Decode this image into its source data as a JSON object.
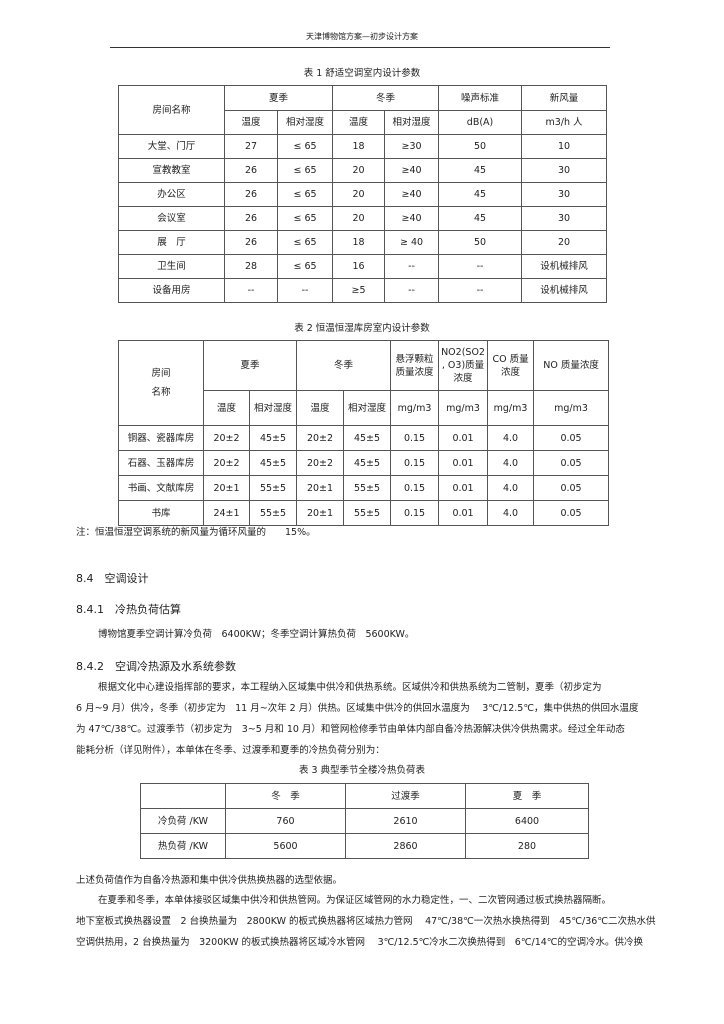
{
  "header": "天津博物馆方案—初步设计方案",
  "table1": {
    "caption": "表 1 舒适空调室内设计参数",
    "headers": {
      "room": "房间名称",
      "summer": "夏季",
      "winter": "冬季",
      "noise": "噪声标准",
      "fresh_air": "新风量",
      "temp": "温度",
      "rh": "相对湿度",
      "noise_unit": "dB(A)",
      "fresh_unit": "m3/h 人"
    },
    "rows": [
      [
        "大堂、门厅",
        "27",
        "≤ 65",
        "18",
        "≥30",
        "50",
        "10"
      ],
      [
        "宣教教室",
        "26",
        "≤ 65",
        "20",
        "≥40",
        "45",
        "30"
      ],
      [
        "办公区",
        "26",
        "≤ 65",
        "20",
        "≥40",
        "45",
        "30"
      ],
      [
        "会议室",
        "26",
        "≤ 65",
        "20",
        "≥40",
        "45",
        "30"
      ],
      [
        "展　厅",
        "26",
        "≤ 65",
        "18",
        "≥ 40",
        "50",
        "20"
      ],
      [
        "卫生间",
        "28",
        "≤ 65",
        "16",
        "--",
        "--",
        "设机械排风"
      ],
      [
        "设备用房",
        "--",
        "--",
        "≥5",
        "--",
        "--",
        "设机械排风"
      ]
    ]
  },
  "table2": {
    "caption": "表 2 恒温恒湿库房室内设计参数",
    "headers": {
      "room1": "房间",
      "room2": "名称",
      "summer": "夏季",
      "winter": "冬季",
      "pm": "悬浮颗粒质量浓度",
      "no2": "NO2(SO2 , O3)质量浓度",
      "co": "CO 质量浓度",
      "no": "NO 质量浓度",
      "temp": "温度",
      "rh": "相对湿度",
      "unit": "mg/m3"
    },
    "rows": [
      [
        "铜器、瓷器库房",
        "20±2",
        "45±5",
        "20±2",
        "45±5",
        "0.15",
        "0.01",
        "4.0",
        "0.05"
      ],
      [
        "石器、玉器库房",
        "20±2",
        "45±5",
        "20±2",
        "45±5",
        "0.15",
        "0.01",
        "4.0",
        "0.05"
      ],
      [
        "书画、文献库房",
        "20±1",
        "55±5",
        "20±1",
        "55±5",
        "0.15",
        "0.01",
        "4.0",
        "0.05"
      ],
      [
        "书库",
        "24±1",
        "55±5",
        "20±1",
        "55±5",
        "0.15",
        "0.01",
        "4.0",
        "0.05"
      ]
    ],
    "note": "注：恒温恒湿空调系统的新风量为循环风量的　　15%。"
  },
  "sections": {
    "s84": "8.4　空调设计",
    "s841": "8.4.1　冷热负荷估算",
    "p841": "博物馆夏季空调计算冷负荷　6400KW；冬季空调计算热负荷　5600KW。",
    "s842": "8.4.2　空调冷热源及水系统参数",
    "p842": [
      "根据文化中心建设指挥部的要求，本工程纳入区域集中供冷和供热系统。区域供冷和供热系统为二管制，夏季（初步定为",
      "6 月~9 月）供冷，冬季（初步定为　11 月~次年 2 月）供热。区域集中供冷的供回水温度为　 3℃/12.5℃，集中供热的供回水温度",
      "为 47℃/38℃。过渡季节（初步定为　3~5 月和 10 月）和管网检修季节由单体内部自备冷热源解决供冷供热需求。经过全年动态",
      "能耗分析（详见附件），本单体在冬季、过渡季和夏季的冷热负荷分别为："
    ]
  },
  "table3": {
    "caption": "表 3 典型季节全楼冷热负荷表",
    "headers": [
      "",
      "冬　季",
      "过渡季",
      "夏　季"
    ],
    "rows": [
      [
        "冷负荷 /KW",
        "760",
        "2610",
        "6400"
      ],
      [
        "热负荷 /KW",
        "5600",
        "2860",
        "280"
      ]
    ]
  },
  "after": [
    "上述负荷值作为自备冷热源和集中供冷供热换热器的选型依据。",
    "在夏季和冬季，本单体接驳区域集中供冷和供热管网。为保证区域管网的水力稳定性，一、二次管网通过板式换热器隔断。",
    "地下室板式换热器设置　2 台换热量为　2800KW 的板式换热器将区域热力管网　 47℃/38℃一次热水换热得到　45℃/36℃二次热水供",
    "空调供热用，2 台换热量为　3200KW 的板式换热器将区域冷水管网　 3℃/12.5℃冷水二次换热得到　6℃/14℃的空调冷水。供冷换"
  ]
}
